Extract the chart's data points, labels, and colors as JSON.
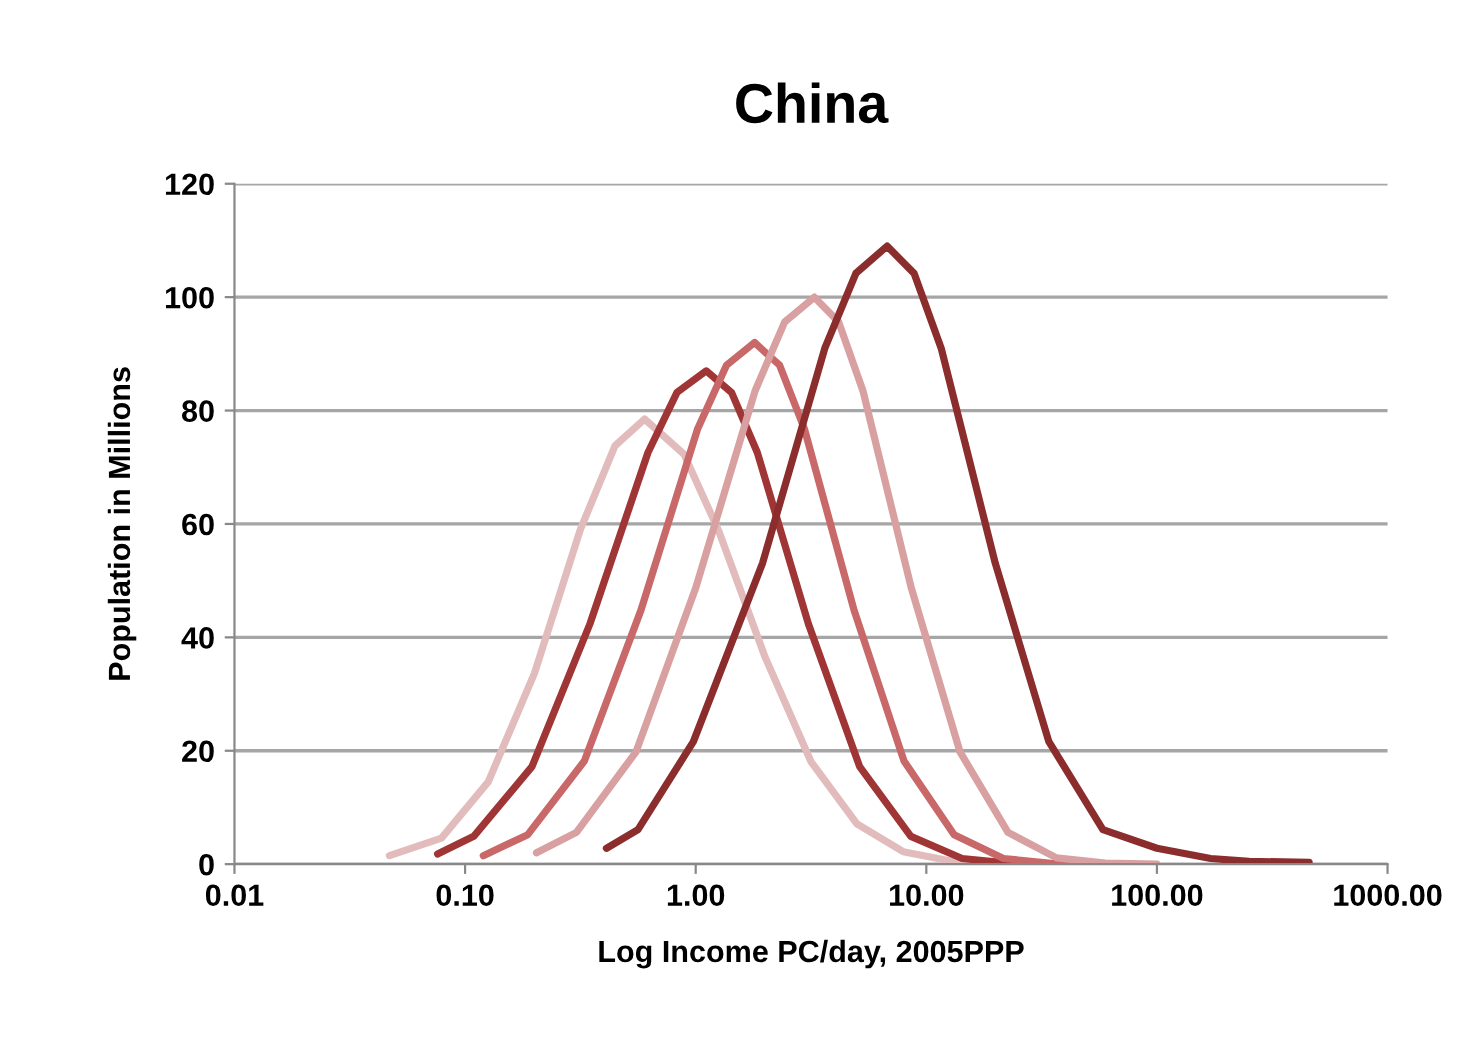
{
  "chart_data": {
    "type": "line",
    "title": "China",
    "xlabel": "Log Income PC/day, 2005PPP",
    "ylabel": "Population in Millions",
    "log": "x",
    "xlim": [
      0.01,
      1000
    ],
    "xticks": [
      {
        "value": 0.01,
        "label": "0.01"
      },
      {
        "value": 0.1,
        "label": "0.10"
      },
      {
        "value": 1,
        "label": "1.00"
      },
      {
        "value": 10,
        "label": "10.00"
      },
      {
        "value": 100,
        "label": "100.00"
      },
      {
        "value": 1000,
        "label": "1000.00"
      }
    ],
    "ylim": [
      0,
      120
    ],
    "yticks": [
      0,
      20,
      40,
      60,
      80,
      100,
      120
    ],
    "grid": "y",
    "marker": "none",
    "line_style": "solid",
    "series": [
      {
        "color": "#e2bcbc",
        "x": [
          0.047,
          0.079,
          0.126,
          0.2,
          0.316,
          0.447,
          0.6,
          0.89,
          1.26,
          2.0,
          3.16,
          5.0,
          7.94,
          12.6,
          25.1
        ],
        "values": [
          1.5,
          4.6,
          14.5,
          33.7,
          59,
          73.8,
          78.5,
          72.3,
          58.7,
          36.5,
          18.1,
          7.1,
          2.2,
          0.6,
          0.1
        ]
      },
      {
        "color": "#a03535",
        "x": [
          0.076,
          0.109,
          0.195,
          0.348,
          0.621,
          0.83,
          1.11,
          1.43,
          1.85,
          3.08,
          5.14,
          8.57,
          14.3,
          23.8,
          39.8
        ],
        "values": [
          1.8,
          4.9,
          17.2,
          42.4,
          72.6,
          83.2,
          87,
          83.2,
          72.6,
          42.4,
          17.2,
          4.9,
          1.0,
          0.1,
          0
        ]
      },
      {
        "color": "#c86868",
        "x": [
          0.12,
          0.187,
          0.329,
          0.579,
          1.02,
          1.36,
          1.8,
          2.31,
          2.96,
          4.86,
          8.0,
          13.2,
          21.6,
          35.6,
          63
        ],
        "values": [
          1.5,
          5.2,
          18.2,
          44.8,
          76.8,
          88,
          92,
          88,
          76.8,
          44.8,
          18.2,
          5.2,
          1.0,
          0.1,
          0
        ]
      },
      {
        "color": "#d8a0a0",
        "x": [
          0.204,
          0.304,
          0.551,
          1.0,
          1.81,
          2.43,
          3.27,
          4.17,
          5.31,
          8.61,
          14.0,
          22.6,
          36.7,
          59.6,
          100
        ],
        "values": [
          2.0,
          5.6,
          19.8,
          48.7,
          83.5,
          95.6,
          100,
          95.6,
          83.5,
          48.7,
          19.8,
          5.6,
          1.1,
          0.2,
          0
        ]
      },
      {
        "color": "#8c2d2d",
        "x": [
          0.41,
          0.562,
          0.977,
          1.95,
          3.63,
          4.95,
          6.76,
          8.85,
          11.6,
          19.9,
          34.0,
          58.3,
          100,
          171,
          251,
          457
        ],
        "values": [
          2.8,
          6.1,
          21.6,
          53.1,
          91,
          104.2,
          109,
          104.2,
          91,
          53.1,
          21.6,
          6.1,
          2.8,
          1.0,
          0.5,
          0.3
        ]
      }
    ]
  }
}
